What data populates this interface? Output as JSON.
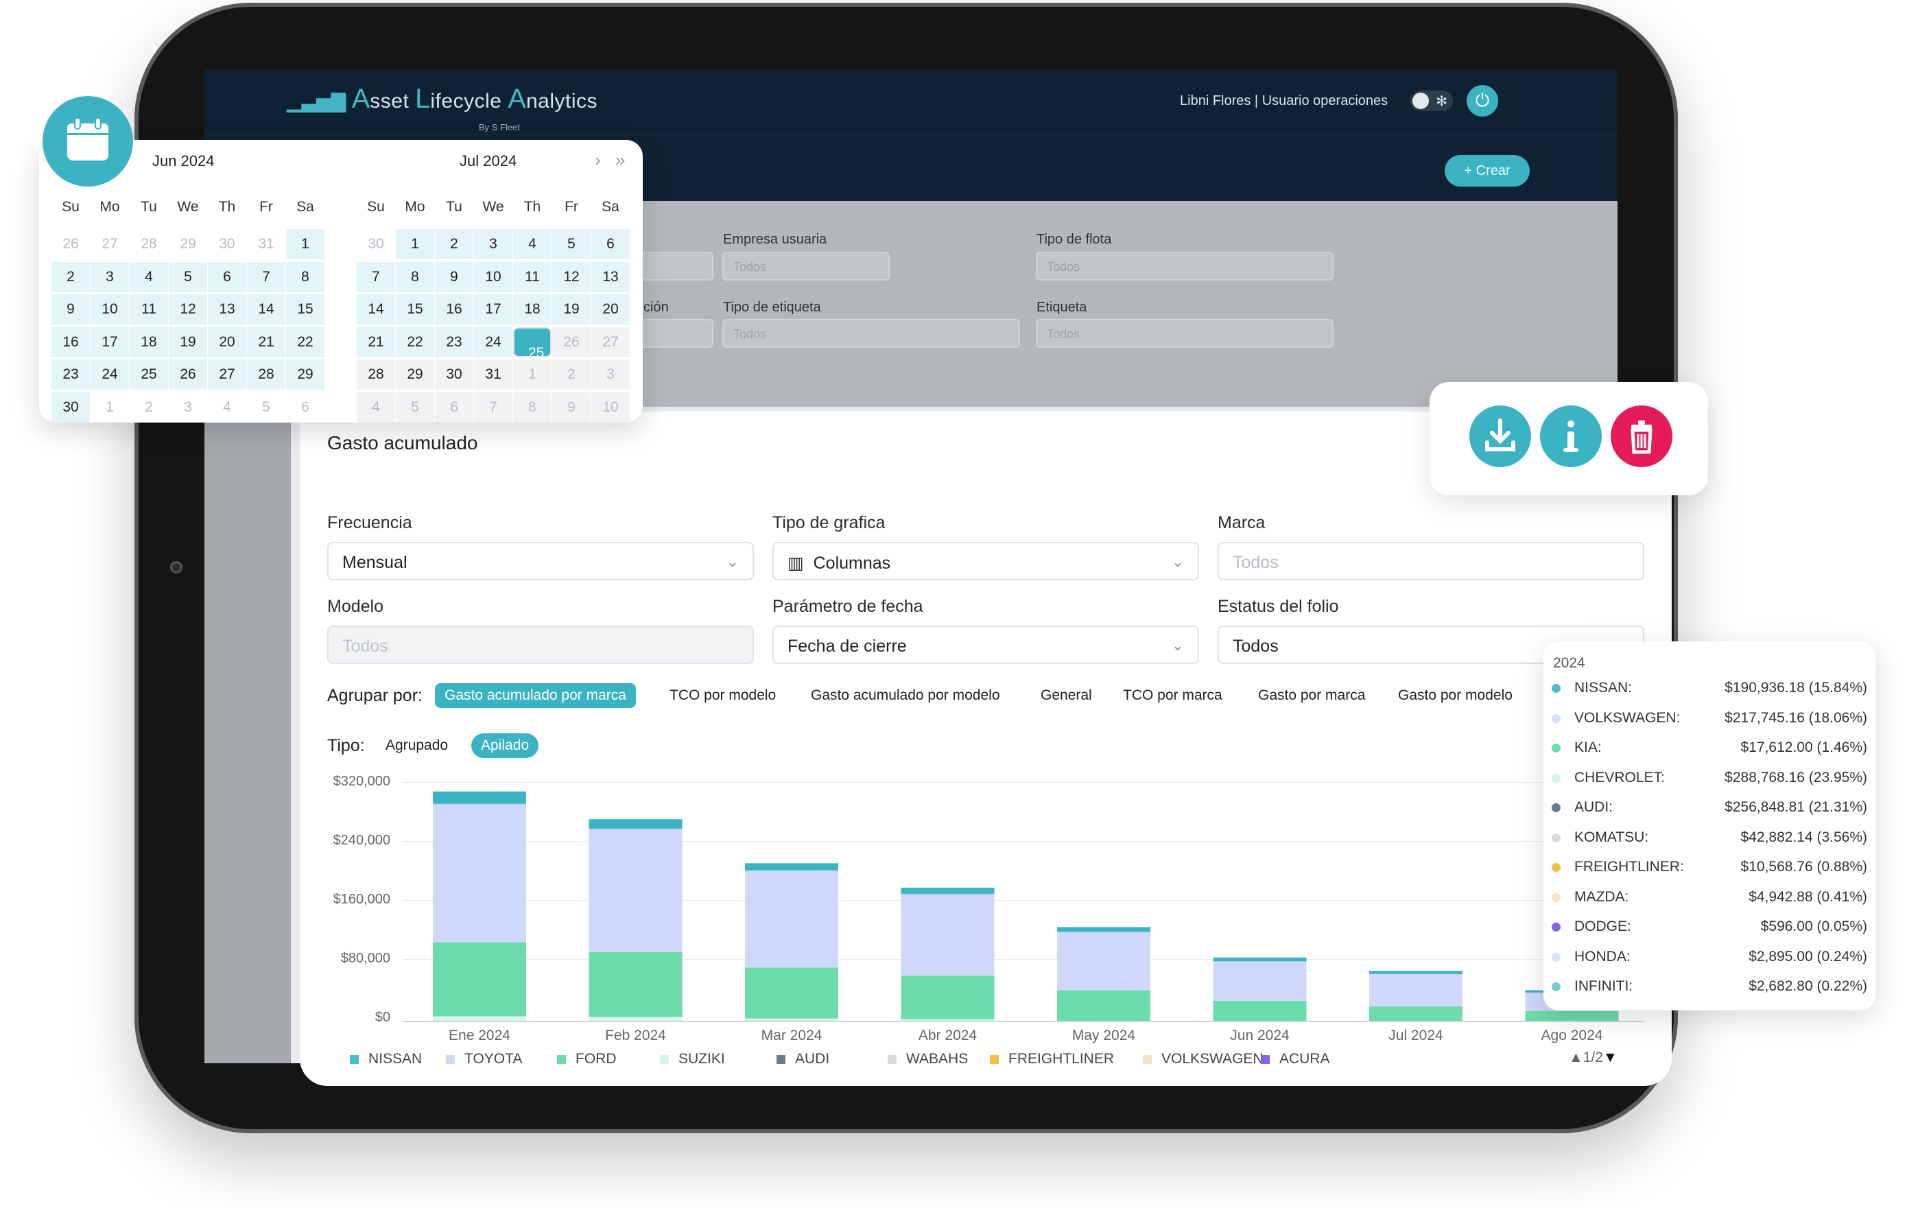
{
  "app": {
    "title_prefix_icon": "bar-chart-logo-icon",
    "title_parts": [
      "A",
      "sset ",
      "L",
      "ifecycle ",
      "A",
      "nalytics"
    ],
    "byline": "By S Fleet",
    "user": "Libni Flores | Usuario operaciones",
    "create_label": "+ Crear"
  },
  "filters": {
    "fields": [
      {
        "label": "e",
        "value": "s"
      },
      {
        "label": "Empresa usuaria",
        "value": "Todos"
      },
      {
        "label": "Tipo de flota",
        "value": "Todos"
      },
      {
        "label": "ción",
        "value": "s"
      },
      {
        "label": "Tipo de etiqueta",
        "value": "Todos"
      },
      {
        "label": "Etiqueta",
        "value": "Todos"
      }
    ]
  },
  "card": {
    "title": "Gasto acumulado",
    "fields": [
      {
        "label": "Frecuencia",
        "value": "Mensual"
      },
      {
        "label": "Tipo de grafica",
        "value": "Columnas"
      },
      {
        "label": "Marca",
        "value": "Todos"
      },
      {
        "label": "Modelo",
        "value": "Todos"
      },
      {
        "label": "Parámetro de fecha",
        "value": "Fecha de cierre"
      },
      {
        "label": "Estatus del folio",
        "value": "Todos"
      }
    ],
    "group_label": "Agrupar por:",
    "group_options": [
      "Gasto acumulado por marca",
      "TCO por modelo",
      "Gasto acumulado por modelo",
      "General",
      "TCO por marca",
      "Gasto por marca",
      "Gasto por modelo"
    ],
    "group_selected": "Gasto acumulado por marca",
    "type_label": "Tipo:",
    "type_options": [
      "Agrupado",
      "Apilado"
    ],
    "type_selected": "Apilado",
    "pager": "1/2"
  },
  "chart_data": {
    "type": "bar",
    "stacked": true,
    "categories": [
      "Ene 2024",
      "Feb 2024",
      "Mar 2024",
      "Abr 2024",
      "May 2024",
      "Jun 2024",
      "Jul 2024",
      "Ago 2024"
    ],
    "y_ticks": [
      "$320,000",
      "$240,000",
      "$160,000",
      "$80,000",
      "$0"
    ],
    "ylim": [
      0,
      320000
    ],
    "series": [
      {
        "name": "NISSAN",
        "color": "#4bbfcc",
        "values": [
          2000,
          1500,
          1000,
          800,
          600,
          500,
          400,
          200
        ]
      },
      {
        "name": "FORD",
        "color": "#6ddcab",
        "values": [
          100000,
          88000,
          69000,
          59000,
          41000,
          27000,
          19000,
          13000
        ]
      },
      {
        "name": "TOYOTA",
        "color": "#cdd8fb",
        "values": [
          187000,
          166000,
          131000,
          110000,
          79000,
          53000,
          44000,
          25000
        ]
      },
      {
        "name": "SUZIKI",
        "color": "#d8f5ec",
        "values": [
          6000,
          5000,
          3000,
          2000,
          0,
          0,
          0,
          0
        ]
      },
      {
        "name": "NISSAN_top",
        "color": "#3bb3c3",
        "values": [
          15000,
          12000,
          9000,
          8000,
          6000,
          5000,
          4000,
          3000
        ]
      }
    ],
    "legend": [
      {
        "name": "NISSAN",
        "color": "#4bbfcc"
      },
      {
        "name": "TOYOTA",
        "color": "#cdd8fb"
      },
      {
        "name": "FORD",
        "color": "#6ddcab"
      },
      {
        "name": "SUZIKI",
        "color": "#d8f5ec"
      },
      {
        "name": "AUDI",
        "color": "#6d7a93"
      },
      {
        "name": "WABAHS",
        "color": "#d9dcdf"
      },
      {
        "name": "FREIGHTLINER",
        "color": "#f2c244"
      },
      {
        "name": "VOLKSWAGEN",
        "color": "#f9e3c4"
      },
      {
        "name": "ACURA",
        "color": "#8363e8"
      }
    ]
  },
  "tooltip": {
    "year": "2024",
    "rows": [
      {
        "name": "NISSAN:",
        "value": "$190,936.18 (15.84%)",
        "color": "#4bbfcc"
      },
      {
        "name": "VOLKSWAGEN:",
        "value": "$217,745.16 (18.06%)",
        "color": "#d6e1fb"
      },
      {
        "name": "KIA:",
        "value": "$17,612.00 (1.46%)",
        "color": "#6ddcab"
      },
      {
        "name": "CHEVROLET:",
        "value": "$288,768.16 (23.95%)",
        "color": "#d8f5ec"
      },
      {
        "name": "AUDI:",
        "value": "$256,848.81 (21.31%)",
        "color": "#6d7a93"
      },
      {
        "name": "KOMATSU:",
        "value": "$42,882.14 (3.56%)",
        "color": "#d9dcdf"
      },
      {
        "name": "FREIGHTLINER:",
        "value": "$10,568.76 (0.88%)",
        "color": "#f2c244"
      },
      {
        "name": "MAZDA:",
        "value": "$4,942.88 (0.41%)",
        "color": "#f9e3c4"
      },
      {
        "name": "DODGE:",
        "value": "$596.00 (0.05%)",
        "color": "#8363e8"
      },
      {
        "name": "HONDA:",
        "value": "$2,895.00 (0.24%)",
        "color": "#d6e1fb"
      },
      {
        "name": "INFINITI:",
        "value": "$2,682.80 (0.22%)",
        "color": "#7cc7d6"
      }
    ]
  },
  "calendar": {
    "left_month": "Jun  2024",
    "right_month": "Jul  2024",
    "dow": [
      "Su",
      "Mo",
      "Tu",
      "We",
      "Th",
      "Fr",
      "Sa"
    ],
    "left_days": [
      [
        "26",
        "27",
        "28",
        "29",
        "30",
        "31",
        "1"
      ],
      [
        "2",
        "3",
        "4",
        "5",
        "6",
        "7",
        "8"
      ],
      [
        "9",
        "10",
        "11",
        "12",
        "13",
        "14",
        "15"
      ],
      [
        "16",
        "17",
        "18",
        "19",
        "20",
        "21",
        "22"
      ],
      [
        "23",
        "24",
        "25",
        "26",
        "27",
        "28",
        "29"
      ],
      [
        "30",
        "1",
        "2",
        "3",
        "4",
        "5",
        "6"
      ]
    ],
    "right_days": [
      [
        "30",
        "1",
        "2",
        "3",
        "4",
        "5",
        "6"
      ],
      [
        "7",
        "8",
        "9",
        "10",
        "11",
        "12",
        "13"
      ],
      [
        "14",
        "15",
        "16",
        "17",
        "18",
        "19",
        "20"
      ],
      [
        "21",
        "22",
        "23",
        "24",
        "25",
        "26",
        "27"
      ],
      [
        "28",
        "29",
        "30",
        "31",
        "1",
        "2",
        "3"
      ],
      [
        "4",
        "5",
        "6",
        "7",
        "8",
        "9",
        "10"
      ]
    ],
    "selected": "25",
    "nav_next": "›",
    "nav_next_year": "»"
  }
}
